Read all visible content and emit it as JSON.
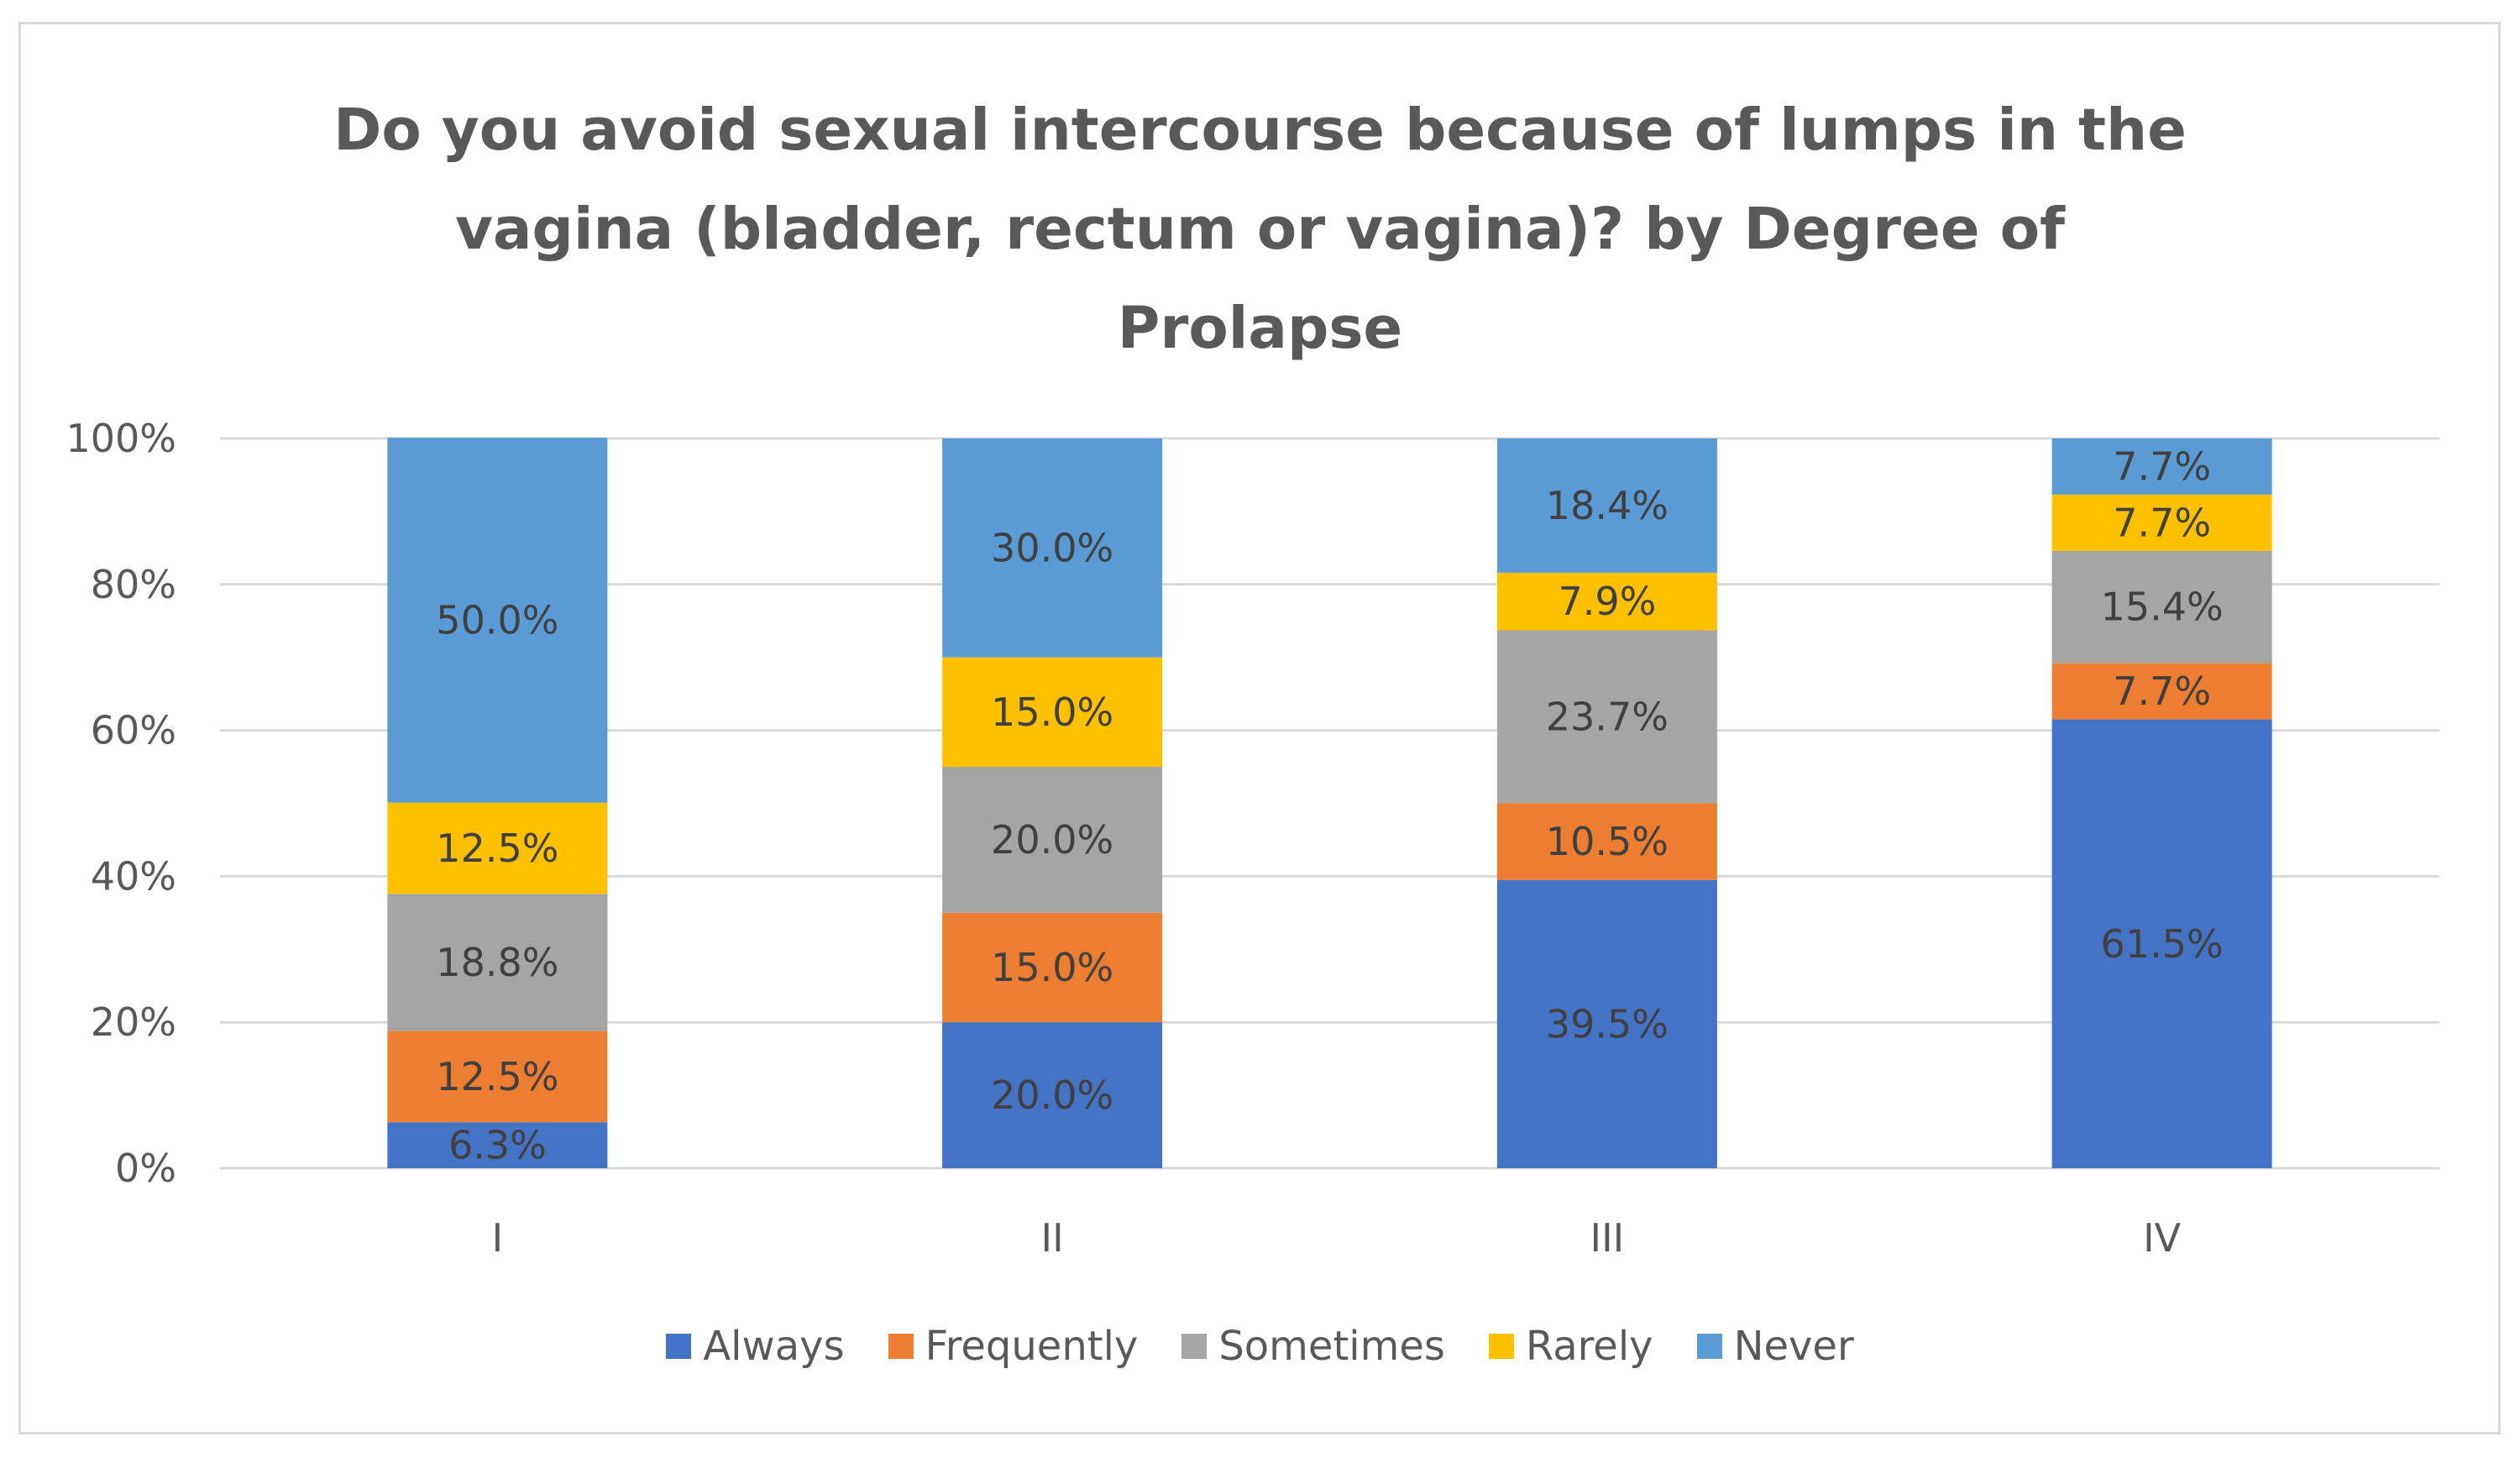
{
  "chart_data": {
    "type": "bar",
    "stacked": true,
    "percent": true,
    "title_lines": [
      "Do you avoid sexual intercourse because of lumps in the",
      "vagina (bladder, rectum or vagina)? by Degree of",
      "Prolapse"
    ],
    "categories": [
      "I",
      "II",
      "III",
      "IV"
    ],
    "ylim": [
      0,
      100
    ],
    "yticks": [
      {
        "value": 0,
        "label": "0%"
      },
      {
        "value": 20,
        "label": "20%"
      },
      {
        "value": 40,
        "label": "40%"
      },
      {
        "value": 60,
        "label": "60%"
      },
      {
        "value": 80,
        "label": "80%"
      },
      {
        "value": 100,
        "label": "100%"
      }
    ],
    "grid": true,
    "legend_position": "bottom",
    "series": [
      {
        "name": "Always",
        "color": "#4472C4",
        "values": [
          6.3,
          20.0,
          39.5,
          61.5
        ],
        "labels": [
          "6.3%",
          "20.0%",
          "39.5%",
          "61.5%"
        ]
      },
      {
        "name": "Frequently",
        "color": "#ED7D31",
        "values": [
          12.5,
          15.0,
          10.5,
          7.7
        ],
        "labels": [
          "12.5%",
          "15.0%",
          "10.5%",
          "7.7%"
        ]
      },
      {
        "name": "Sometimes",
        "color": "#A5A5A5",
        "values": [
          18.8,
          20.0,
          23.7,
          15.4
        ],
        "labels": [
          "18.8%",
          "20.0%",
          "23.7%",
          "15.4%"
        ]
      },
      {
        "name": "Rarely",
        "color": "#FFC000",
        "values": [
          12.5,
          15.0,
          7.9,
          7.7
        ],
        "labels": [
          "12.5%",
          "15.0%",
          "7.9%",
          "7.7%"
        ]
      },
      {
        "name": "Never",
        "color": "#5B9BD5",
        "values": [
          50.0,
          30.0,
          18.4,
          7.7
        ],
        "labels": [
          "50.0%",
          "30.0%",
          "18.4%",
          "7.7%"
        ]
      }
    ]
  }
}
